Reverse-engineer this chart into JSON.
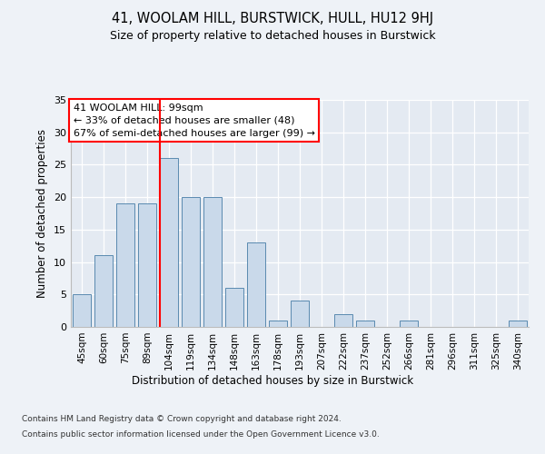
{
  "title": "41, WOOLAM HILL, BURSTWICK, HULL, HU12 9HJ",
  "subtitle": "Size of property relative to detached houses in Burstwick",
  "xlabel": "Distribution of detached houses by size in Burstwick",
  "ylabel": "Number of detached properties",
  "bar_values": [
    5,
    11,
    19,
    19,
    26,
    20,
    20,
    6,
    13,
    1,
    4,
    0,
    2,
    1,
    0,
    1,
    0,
    0,
    0,
    0,
    1
  ],
  "x_ticks": [
    "45sqm",
    "60sqm",
    "75sqm",
    "89sqm",
    "104sqm",
    "119sqm",
    "134sqm",
    "148sqm",
    "163sqm",
    "178sqm",
    "193sqm",
    "207sqm",
    "222sqm",
    "237sqm",
    "252sqm",
    "266sqm",
    "281sqm",
    "296sqm",
    "311sqm",
    "325sqm",
    "340sqm"
  ],
  "bar_color": "#c9d9ea",
  "bar_edge_color": "#5a8ab0",
  "vline_color": "red",
  "vline_pos": 3.575,
  "annotation_text": "41 WOOLAM HILL: 99sqm\n← 33% of detached houses are smaller (48)\n67% of semi-detached houses are larger (99) →",
  "annotation_box_color": "white",
  "annotation_box_edge": "red",
  "ylim": [
    0,
    35
  ],
  "yticks": [
    0,
    5,
    10,
    15,
    20,
    25,
    30,
    35
  ],
  "footer_line1": "Contains HM Land Registry data © Crown copyright and database right 2024.",
  "footer_line2": "Contains public sector information licensed under the Open Government Licence v3.0.",
  "bg_color": "#eef2f7",
  "plot_bg_color": "#e4eaf2"
}
